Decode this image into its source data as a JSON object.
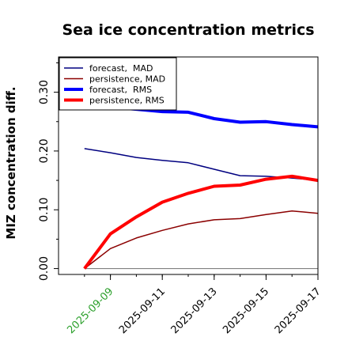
{
  "chart_data": {
    "type": "line",
    "title": "Sea ice concentration metrics",
    "ylabel": "MIZ concentration diff.",
    "xlabel": "",
    "x": [
      "2025-09-08",
      "2025-09-09",
      "2025-09-10",
      "2025-09-11",
      "2025-09-12",
      "2025-09-13",
      "2025-09-14",
      "2025-09-15",
      "2025-09-16",
      "2025-09-17"
    ],
    "xlim": [
      "2025-09-07",
      "2025-09-17"
    ],
    "ylim": [
      -0.01,
      0.36
    ],
    "x_ticks": [
      {
        "label": "2025-09-09",
        "color": "#2ca02c"
      },
      {
        "label": "2025-09-11",
        "color": "#000000"
      },
      {
        "label": "2025-09-13",
        "color": "#000000"
      },
      {
        "label": "2025-09-15",
        "color": "#000000"
      },
      {
        "label": "2025-09-17",
        "color": "#000000"
      }
    ],
    "y_ticks": [
      "0.00",
      "0.10",
      "0.20",
      "0.30"
    ],
    "y_minor_ticks": [
      0.05,
      0.15,
      0.25,
      0.35
    ],
    "grid": false,
    "legend_position": "top-left",
    "series": [
      {
        "name": "forecast,  MAD",
        "color": "#000080",
        "width": 1.5,
        "values": [
          0.204,
          0.197,
          0.189,
          0.184,
          0.18,
          0.169,
          0.158,
          0.157,
          0.154,
          0.15
        ]
      },
      {
        "name": "persistence, MAD",
        "color": "#8b0000",
        "width": 1.5,
        "values": [
          0.0,
          0.034,
          0.052,
          0.065,
          0.076,
          0.083,
          0.085,
          0.092,
          0.098,
          0.094
        ]
      },
      {
        "name": "forecast,  RMS",
        "color": "#0000ff",
        "width": 4,
        "values": [
          0.282,
          0.275,
          0.271,
          0.267,
          0.266,
          0.255,
          0.249,
          0.25,
          0.245,
          0.241
        ]
      },
      {
        "name": "persistence, RMS",
        "color": "#ff0000",
        "width": 4,
        "values": [
          0.0,
          0.059,
          0.088,
          0.113,
          0.128,
          0.14,
          0.142,
          0.152,
          0.157,
          0.15
        ]
      }
    ],
    "baseline": {
      "value": 0.0,
      "color": "#808080"
    }
  }
}
